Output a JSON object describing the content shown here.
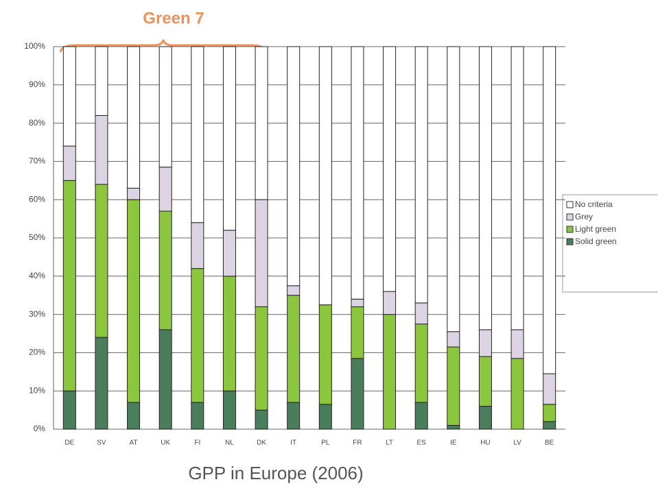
{
  "chart_data": {
    "type": "stacked_bar",
    "title": "GPP in Europe (2006)",
    "annotation": "Green 7",
    "categories": [
      "DE",
      "SV",
      "AT",
      "UK",
      "FI",
      "NL",
      "DK",
      "IT",
      "PL",
      "FR",
      "LT",
      "ES",
      "IE",
      "HU",
      "LV",
      "BE"
    ],
    "series": [
      {
        "name": "Solid green",
        "color": "#4a7d5c",
        "values": [
          10,
          24,
          7,
          26,
          7,
          10,
          5,
          7,
          6.5,
          18.5,
          0,
          7,
          1,
          6,
          0,
          2
        ]
      },
      {
        "name": "Light green",
        "color": "#8cc63f",
        "values": [
          55,
          40,
          53,
          31,
          35,
          30,
          27,
          28,
          26,
          13.5,
          30,
          20.5,
          20.5,
          13,
          18.5,
          4.5
        ]
      },
      {
        "name": "Grey",
        "color": "#dcd3e3",
        "values": [
          9,
          18,
          3,
          11.5,
          12,
          12,
          28,
          2.5,
          0,
          2,
          6,
          5.5,
          4,
          7,
          7.5,
          8
        ]
      },
      {
        "name": "No criteria",
        "color": "#ffffff",
        "values": [
          26,
          18,
          37,
          31.5,
          46,
          48,
          40,
          62.5,
          67.5,
          66,
          64,
          67,
          74.5,
          74,
          74,
          85.5
        ]
      }
    ],
    "ylim": [
      0,
      100
    ],
    "yticks": [
      {
        "value": 0,
        "label": "0%"
      },
      {
        "value": 10,
        "label": "10%"
      },
      {
        "value": 20,
        "label": "20%"
      },
      {
        "value": 30,
        "label": "30%"
      },
      {
        "value": 40,
        "label": "40%"
      },
      {
        "value": 50,
        "label": "50%"
      },
      {
        "value": 60,
        "label": "60%"
      },
      {
        "value": 70,
        "label": "70%"
      },
      {
        "value": 80,
        "label": "80%"
      },
      {
        "value": 90,
        "label": "90%"
      },
      {
        "value": 100,
        "label": "100%"
      }
    ],
    "grid": true
  }
}
